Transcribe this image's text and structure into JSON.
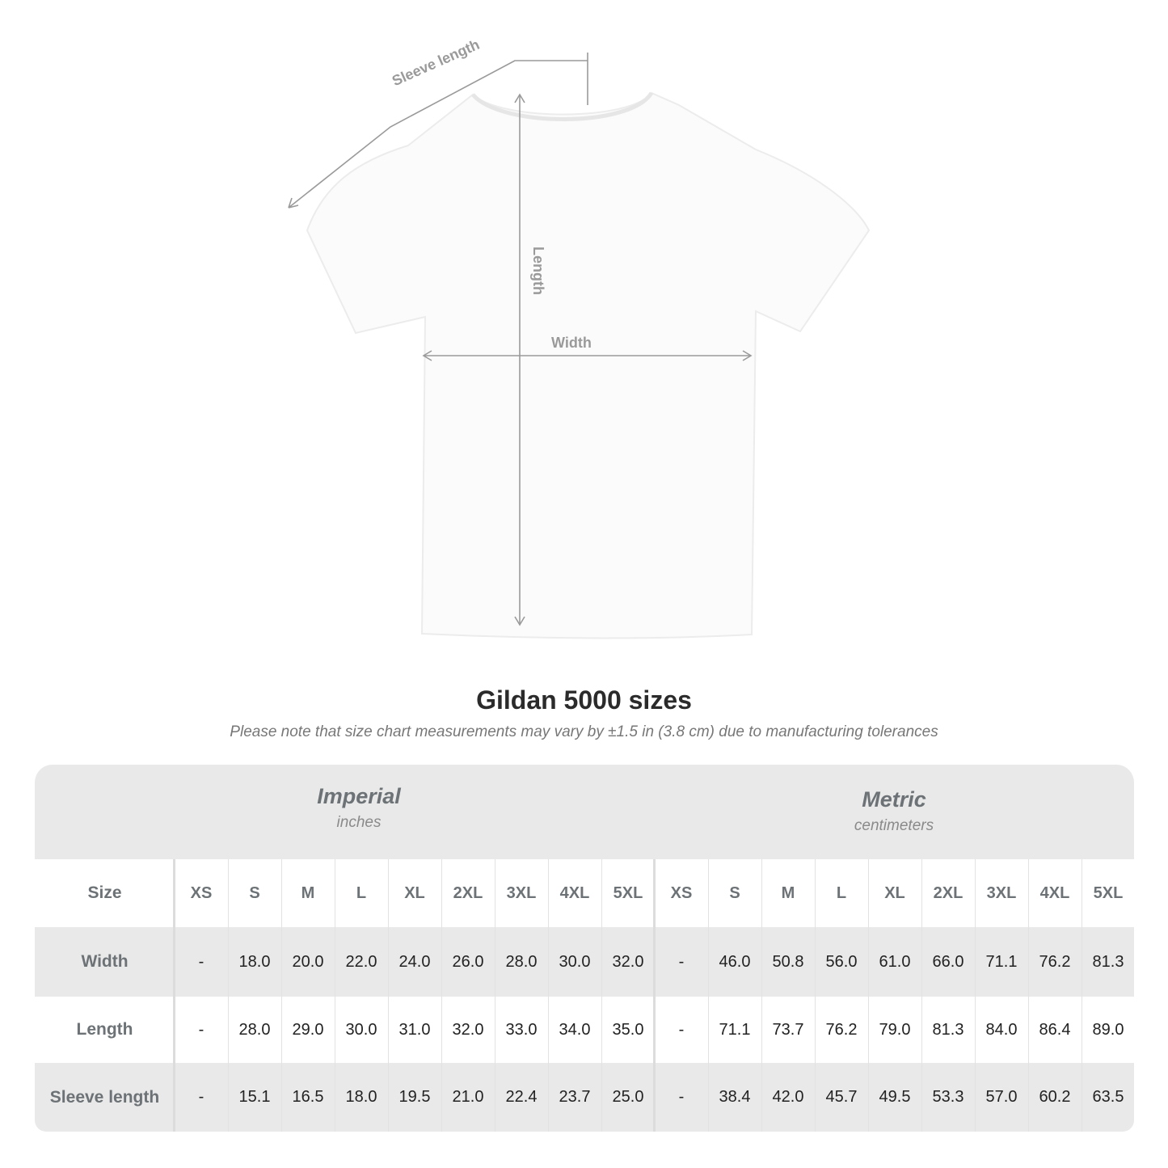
{
  "diagram": {
    "labels": {
      "sleeve": "Sleeve length",
      "length": "Length",
      "width": "Width"
    },
    "shirt_color": "#ffffff",
    "line_color": "#9a9a9a"
  },
  "title": "Gildan 5000 sizes",
  "subtitle": "Please note that size chart measurements may vary by ±1.5 in (3.8 cm) due to manufacturing tolerances",
  "table": {
    "imperial": {
      "name": "Imperial",
      "unit": "inches"
    },
    "metric": {
      "name": "Metric",
      "unit": "centimeters"
    },
    "size_label": "Size",
    "sizes": [
      "XS",
      "S",
      "M",
      "L",
      "XL",
      "2XL",
      "3XL",
      "4XL",
      "5XL"
    ],
    "rows": [
      {
        "label": "Width",
        "imperial": [
          "-",
          "18.0",
          "20.0",
          "22.0",
          "24.0",
          "26.0",
          "28.0",
          "30.0",
          "32.0"
        ],
        "metric": [
          "-",
          "46.0",
          "50.8",
          "56.0",
          "61.0",
          "66.0",
          "71.1",
          "76.2",
          "81.3"
        ]
      },
      {
        "label": "Length",
        "imperial": [
          "-",
          "28.0",
          "29.0",
          "30.0",
          "31.0",
          "32.0",
          "33.0",
          "34.0",
          "35.0"
        ],
        "metric": [
          "-",
          "71.1",
          "73.7",
          "76.2",
          "79.0",
          "81.3",
          "84.0",
          "86.4",
          "89.0"
        ]
      },
      {
        "label": "Sleeve length",
        "imperial": [
          "-",
          "15.1",
          "16.5",
          "18.0",
          "19.5",
          "21.0",
          "22.4",
          "23.7",
          "25.0"
        ],
        "metric": [
          "-",
          "38.4",
          "42.0",
          "45.7",
          "49.5",
          "53.3",
          "57.0",
          "60.2",
          "63.5"
        ]
      }
    ],
    "band_color": "#e9e9e9"
  }
}
